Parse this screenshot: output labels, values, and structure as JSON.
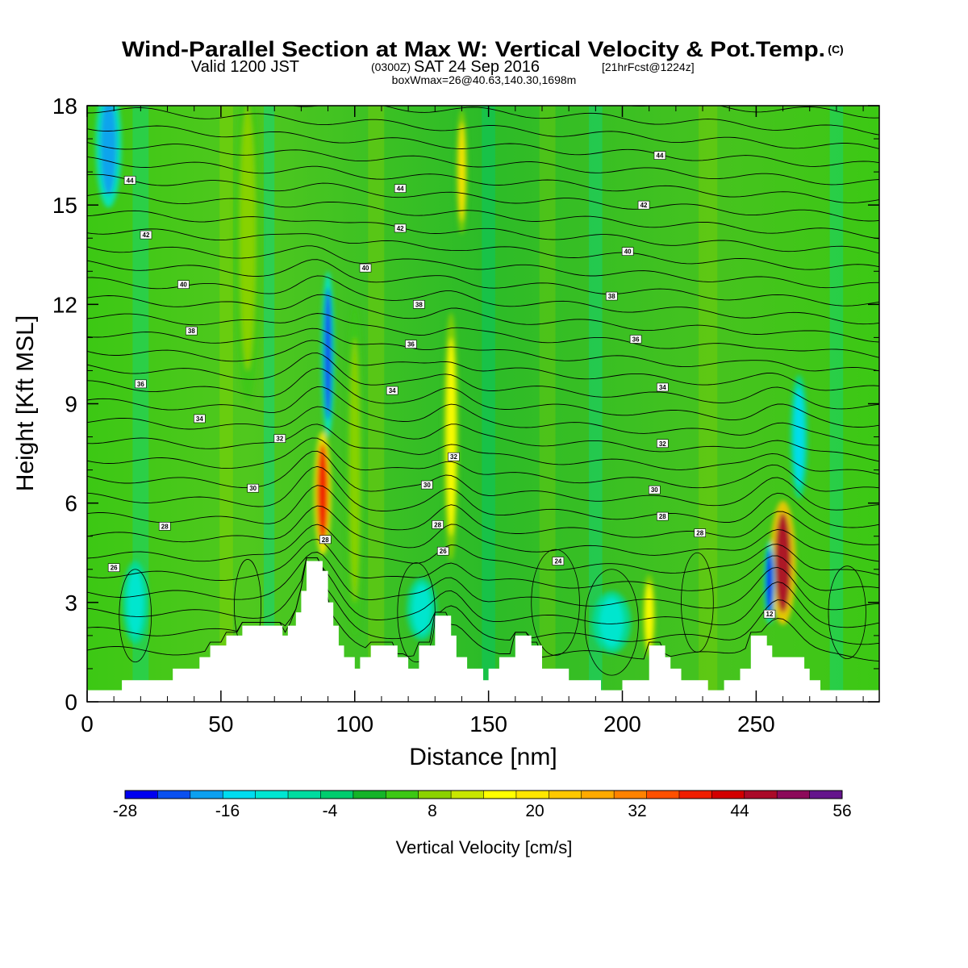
{
  "title": {
    "main": "Wind-Parallel Section at Max W: Vertical Velocity & Pot.Temp.",
    "main_mark": "(C)",
    "line2_a": "Valid 1200 JST",
    "line2_b": "(0300Z)",
    "line2_c": "SAT 24 Sep 2016",
    "line2_d": "[21hrFcst@1224z]",
    "line3": "boxWmax=26@40.63,140.30,1698m"
  },
  "chart_data": {
    "type": "heatmap",
    "xlabel": "Distance [nm]",
    "ylabel": "Height [Kft MSL]",
    "xlim": [
      0,
      296
    ],
    "ylim": [
      0,
      18
    ],
    "x_ticks": [
      "0",
      "50",
      "100",
      "150",
      "200",
      "250"
    ],
    "y_ticks": [
      "0",
      "3",
      "6",
      "9",
      "12",
      "15",
      "18"
    ],
    "x_tick_values": [
      0,
      50,
      100,
      150,
      200,
      250
    ],
    "y_tick_values": [
      0,
      3,
      6,
      9,
      12,
      15,
      18
    ],
    "terrain": [
      [
        0,
        0.35
      ],
      [
        13,
        0.35
      ],
      [
        13,
        0.65
      ],
      [
        32,
        0.65
      ],
      [
        32,
        1.0
      ],
      [
        42,
        1.0
      ],
      [
        42,
        1.35
      ],
      [
        46,
        1.35
      ],
      [
        46,
        1.7
      ],
      [
        52,
        1.7
      ],
      [
        52,
        2.0
      ],
      [
        58,
        2.0
      ],
      [
        58,
        2.3
      ],
      [
        73,
        2.3
      ],
      [
        73,
        2.0
      ],
      [
        75,
        2.0
      ],
      [
        75,
        2.3
      ],
      [
        78,
        2.3
      ],
      [
        78,
        2.7
      ],
      [
        80,
        2.7
      ],
      [
        80,
        3.35
      ],
      [
        82,
        3.35
      ],
      [
        82,
        4.25
      ],
      [
        88,
        4.25
      ],
      [
        88,
        3.95
      ],
      [
        90,
        3.95
      ],
      [
        90,
        3.0
      ],
      [
        92,
        3.0
      ],
      [
        92,
        2.3
      ],
      [
        94,
        2.3
      ],
      [
        94,
        1.7
      ],
      [
        96,
        1.7
      ],
      [
        96,
        1.35
      ],
      [
        100,
        1.35
      ],
      [
        100,
        1.0
      ],
      [
        102,
        1.0
      ],
      [
        102,
        1.35
      ],
      [
        106,
        1.35
      ],
      [
        106,
        1.7
      ],
      [
        116,
        1.7
      ],
      [
        116,
        1.35
      ],
      [
        120,
        1.35
      ],
      [
        120,
        1.0
      ],
      [
        124,
        1.0
      ],
      [
        124,
        1.7
      ],
      [
        130,
        1.7
      ],
      [
        130,
        2.6
      ],
      [
        136,
        2.6
      ],
      [
        136,
        2.0
      ],
      [
        138,
        2.0
      ],
      [
        138,
        1.35
      ],
      [
        142,
        1.35
      ],
      [
        142,
        1.0
      ],
      [
        148,
        1.0
      ],
      [
        148,
        0.65
      ],
      [
        150,
        0.65
      ],
      [
        150,
        1.0
      ],
      [
        154,
        1.0
      ],
      [
        154,
        1.35
      ],
      [
        160,
        1.35
      ],
      [
        160,
        2.0
      ],
      [
        166,
        2.0
      ],
      [
        166,
        1.7
      ],
      [
        170,
        1.7
      ],
      [
        170,
        1.0
      ],
      [
        180,
        1.0
      ],
      [
        180,
        0.65
      ],
      [
        192,
        0.65
      ],
      [
        192,
        0.35
      ],
      [
        200,
        0.35
      ],
      [
        200,
        0.65
      ],
      [
        210,
        0.65
      ],
      [
        210,
        1.7
      ],
      [
        216,
        1.7
      ],
      [
        216,
        1.35
      ],
      [
        218,
        1.35
      ],
      [
        218,
        1.0
      ],
      [
        222,
        1.0
      ],
      [
        222,
        0.65
      ],
      [
        232,
        0.65
      ],
      [
        232,
        0.35
      ],
      [
        238,
        0.35
      ],
      [
        238,
        0.65
      ],
      [
        244,
        0.65
      ],
      [
        244,
        1.0
      ],
      [
        248,
        1.0
      ],
      [
        248,
        2.0
      ],
      [
        254,
        2.0
      ],
      [
        254,
        1.7
      ],
      [
        256,
        1.7
      ],
      [
        256,
        1.35
      ],
      [
        268,
        1.35
      ],
      [
        268,
        1.0
      ],
      [
        270,
        1.0
      ],
      [
        270,
        0.65
      ],
      [
        274,
        0.65
      ],
      [
        274,
        0.35
      ],
      [
        296,
        0.35
      ]
    ],
    "updrafts": [
      {
        "x": 88,
        "y": 6.3,
        "w": 4.0,
        "h": 3.0,
        "value": 40
      },
      {
        "x": 90,
        "y": 10.5,
        "w": 3.0,
        "h": 4.0,
        "value": -24
      },
      {
        "x": 136,
        "y": 8.0,
        "w": 3.5,
        "h": 6.0,
        "value": 18
      },
      {
        "x": 140,
        "y": 16.0,
        "w": 2.5,
        "h": 3.0,
        "value": 20
      },
      {
        "x": 260,
        "y": 4.2,
        "w": 6.0,
        "h": 3.0,
        "value": 48
      },
      {
        "x": 255,
        "y": 3.6,
        "w": 2.5,
        "h": 2.0,
        "value": -26
      },
      {
        "x": 8,
        "y": 16.8,
        "w": 6.0,
        "h": 3.0,
        "value": -20
      },
      {
        "x": 210,
        "y": 2.6,
        "w": 3.0,
        "h": 2.0,
        "value": 18
      },
      {
        "x": 18,
        "y": 3.0,
        "w": 6.0,
        "h": 2.0,
        "value": -12
      },
      {
        "x": 196,
        "y": 2.4,
        "w": 9.0,
        "h": 1.5,
        "value": -12
      },
      {
        "x": 125,
        "y": 2.8,
        "w": 7.0,
        "h": 1.5,
        "value": -10
      },
      {
        "x": 266,
        "y": 8.0,
        "w": 4.0,
        "h": 3.0,
        "value": -14
      },
      {
        "x": 100,
        "y": 7.0,
        "w": 4.0,
        "h": 8.0,
        "value": 8
      },
      {
        "x": 60,
        "y": 14.0,
        "w": 6.0,
        "h": 8.0,
        "value": 8
      }
    ],
    "theta_contours": [
      {
        "value": "26",
        "label_at": [
          10,
          4.05
        ]
      },
      {
        "value": "28",
        "label_at": [
          29,
          5.3
        ]
      },
      {
        "value": "30",
        "label_at": [
          62,
          6.45
        ]
      },
      {
        "value": "32",
        "label_at": [
          72,
          7.95
        ]
      },
      {
        "value": "34",
        "label_at": [
          42,
          8.55
        ]
      },
      {
        "value": "36",
        "label_at": [
          20,
          9.6
        ]
      },
      {
        "value": "38",
        "label_at": [
          39,
          11.2
        ]
      },
      {
        "value": "40",
        "label_at": [
          36,
          12.6
        ]
      },
      {
        "value": "42",
        "label_at": [
          22,
          14.1
        ]
      },
      {
        "value": "44",
        "label_at": [
          16,
          15.75
        ]
      }
    ],
    "contour_labels": [
      {
        "text": "44",
        "x": 117,
        "y": 15.5
      },
      {
        "text": "42",
        "x": 117,
        "y": 14.3
      },
      {
        "text": "40",
        "x": 104,
        "y": 13.1
      },
      {
        "text": "38",
        "x": 124,
        "y": 12.0
      },
      {
        "text": "36",
        "x": 121,
        "y": 10.8
      },
      {
        "text": "34",
        "x": 114,
        "y": 9.4
      },
      {
        "text": "32",
        "x": 137,
        "y": 7.4
      },
      {
        "text": "30",
        "x": 127,
        "y": 6.55
      },
      {
        "text": "28",
        "x": 131,
        "y": 5.35
      },
      {
        "text": "26",
        "x": 133,
        "y": 4.55
      },
      {
        "text": "28",
        "x": 89,
        "y": 4.9
      },
      {
        "text": "24",
        "x": 176,
        "y": 4.25
      },
      {
        "text": "44",
        "x": 214,
        "y": 16.5
      },
      {
        "text": "42",
        "x": 208,
        "y": 15.0
      },
      {
        "text": "40",
        "x": 202,
        "y": 13.6
      },
      {
        "text": "38",
        "x": 196,
        "y": 12.25
      },
      {
        "text": "36",
        "x": 205,
        "y": 10.95
      },
      {
        "text": "34",
        "x": 215,
        "y": 9.5
      },
      {
        "text": "32",
        "x": 215,
        "y": 7.8
      },
      {
        "text": "30",
        "x": 212,
        "y": 6.4
      },
      {
        "text": "28",
        "x": 215,
        "y": 5.6
      },
      {
        "text": "28",
        "x": 229,
        "y": 5.1
      },
      {
        "text": "12",
        "x": 255,
        "y": 2.65
      }
    ],
    "colorbar": {
      "title": "Vertical Velocity [cm/s]",
      "min": -28,
      "max": 56,
      "step": 4,
      "tick_labels": [
        "-28",
        "-16",
        "-4",
        "8",
        "20",
        "32",
        "44",
        "56"
      ],
      "colors": [
        "#0000f0",
        "#0a50f0",
        "#0ca0f0",
        "#00dcf0",
        "#00e6d2",
        "#00dca0",
        "#00cd6e",
        "#14b428",
        "#3cc814",
        "#8cd200",
        "#c8e600",
        "#ffff00",
        "#ffe600",
        "#ffc800",
        "#ffaa00",
        "#ff8200",
        "#ff5000",
        "#f01e00",
        "#d20000",
        "#aa0a28",
        "#8c0a5a",
        "#64148c"
      ]
    }
  }
}
